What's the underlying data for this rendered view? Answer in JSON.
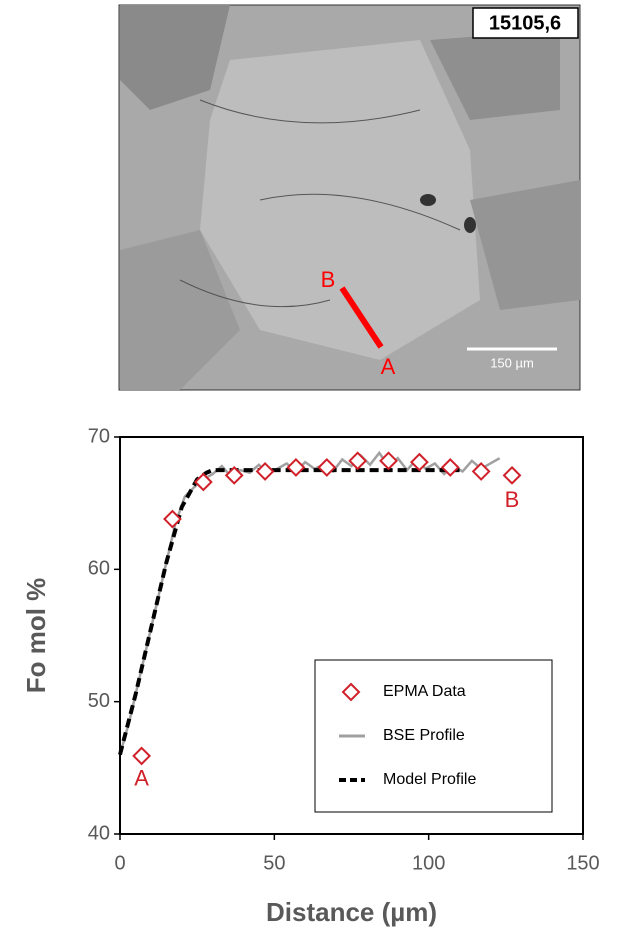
{
  "image": {
    "label": "15105,6",
    "scale_bar": "150 µm",
    "point_a": "A",
    "point_b": "B"
  },
  "chart_data": {
    "type": "line",
    "xlabel": "Distance (µm)",
    "ylabel": "Fo mol %",
    "xlim": [
      0,
      150
    ],
    "ylim": [
      40,
      70
    ],
    "xticks": [
      0,
      50,
      100,
      150
    ],
    "yticks": [
      40,
      50,
      60,
      70
    ],
    "legend": "lower right",
    "annotations": [
      "A",
      "B"
    ],
    "series": [
      {
        "name": "EPMA Data",
        "color": "#d0202a",
        "marker": "diamond",
        "x": [
          7,
          17,
          27,
          37,
          47,
          57,
          67,
          77,
          87,
          97,
          107,
          117,
          127
        ],
        "values": [
          45.9,
          63.8,
          66.6,
          67.1,
          67.4,
          67.7,
          67.7,
          68.2,
          68.2,
          68.1,
          67.7,
          67.4,
          67.1
        ]
      },
      {
        "name": "BSE Profile",
        "color": "#a0a0a0",
        "line_style": "solid",
        "x": [
          0,
          3,
          6,
          9,
          12,
          15,
          18,
          21,
          24,
          27,
          30,
          33,
          36,
          39,
          42,
          45,
          48,
          51,
          54,
          57,
          60,
          63,
          66,
          69,
          72,
          75,
          78,
          81,
          84,
          87,
          90,
          93,
          96,
          99,
          102,
          105,
          108,
          111,
          114,
          117,
          120,
          123
        ],
        "values": [
          46,
          48.5,
          51.5,
          54.5,
          57.5,
          60.5,
          63.5,
          65.5,
          66.2,
          66.8,
          67.2,
          67.8,
          67.0,
          67.5,
          67.3,
          67.9,
          67.2,
          67.6,
          68.0,
          67.4,
          68.1,
          67.6,
          67.9,
          67.4,
          68.3,
          67.8,
          68.6,
          67.9,
          68.8,
          67.8,
          68.4,
          67.5,
          68.3,
          67.6,
          68.0,
          67.2,
          67.8,
          67.4,
          68.2,
          67.6,
          68.0,
          68.4
        ]
      },
      {
        "name": "Model Profile",
        "color": "#000000",
        "line_style": "dashed",
        "x": [
          0,
          5,
          10,
          15,
          20,
          25,
          28,
          30,
          40,
          110
        ],
        "values": [
          46,
          50.5,
          55.5,
          60.5,
          64.7,
          66.8,
          67.3,
          67.5,
          67.5,
          67.5
        ]
      }
    ]
  }
}
